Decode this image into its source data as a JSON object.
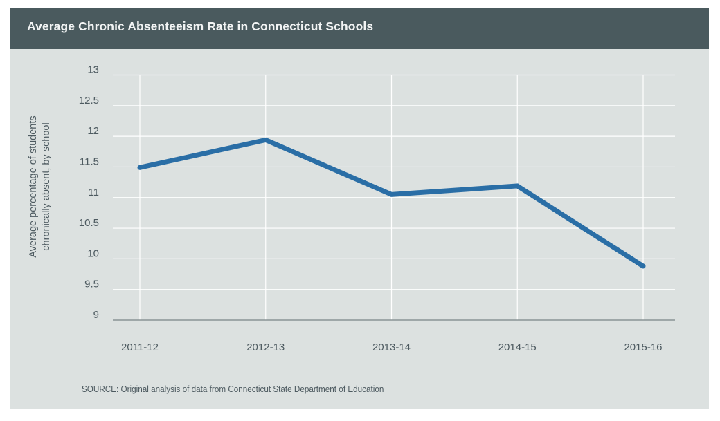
{
  "header": {
    "title": "Average Chronic Absenteeism Rate in Connecticut Schools"
  },
  "footer": {
    "source": "SOURCE: Original analysis of data from Connecticut State Department of Education"
  },
  "colors": {
    "header_bg": "#4a5a5e",
    "panel_bg": "#dce1e0",
    "line": "#2a6ea6",
    "text": "#4d5a60",
    "gridline": "#ffffff",
    "baseline": "#8a9496"
  },
  "chart_data": {
    "type": "line",
    "title": "Average Chronic Absenteeism Rate in Connecticut Schools",
    "xlabel": "",
    "ylabel_lines": [
      "Average percentage of students",
      "chronically absent, by school"
    ],
    "ylabel": "Average percentage of students chronically absent, by school",
    "categories": [
      "2011-12",
      "2012-13",
      "2013-14",
      "2014-15",
      "2015-16"
    ],
    "series": [
      {
        "name": "Average chronic absenteeism rate",
        "values": [
          11.49,
          11.94,
          11.05,
          11.19,
          9.88
        ]
      }
    ],
    "ylim": [
      9,
      13
    ],
    "yticks": [
      9,
      9.5,
      10,
      10.5,
      11,
      11.5,
      12,
      12.5,
      13
    ],
    "ytick_labels": [
      "9",
      "9.5",
      "10",
      "10.5",
      "11",
      "11.5",
      "12",
      "12.5",
      "13"
    ],
    "grid": true,
    "legend": "none"
  }
}
